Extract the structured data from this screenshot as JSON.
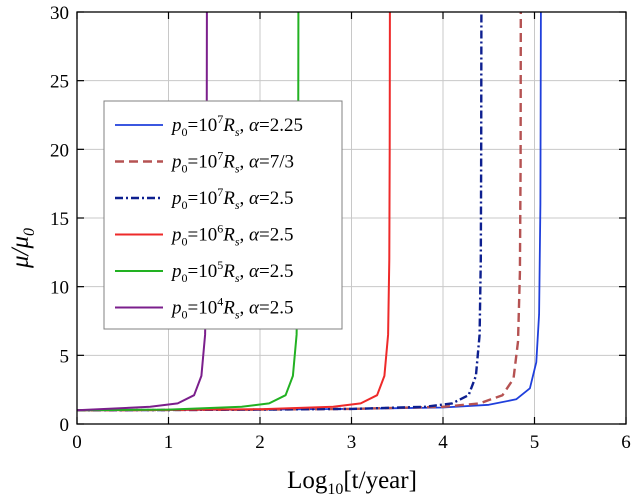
{
  "chart_data": {
    "type": "line",
    "xlabel_main": "Log",
    "xlabel_sub": "10",
    "xlabel_tail": "[t/year]",
    "ylabel_mu": "μ/μ",
    "ylabel_sub": "0",
    "xlim": [
      0,
      6
    ],
    "ylim": [
      0,
      30
    ],
    "xticks": [
      "0",
      "1",
      "2",
      "3",
      "4",
      "5",
      "6"
    ],
    "yticks": [
      "0",
      "5",
      "10",
      "15",
      "20",
      "25",
      "30"
    ],
    "grid": true,
    "legend_position": "center-left",
    "series": [
      {
        "legend": {
          "p": "p",
          "sub0": "0",
          "eq": "=10",
          "exp": "7",
          "R": "R",
          "subs": "s",
          "comma": ", ",
          "alpha": "α",
          "val": "=2.25"
        },
        "color": "#1f3fdc",
        "dash": "solid",
        "width": 1.8,
        "asymptote": 5.07,
        "x": [
          0,
          1,
          2,
          3,
          4,
          4.5,
          4.8,
          4.95,
          5.02,
          5.05,
          5.065,
          5.07
        ],
        "y": [
          1.0,
          1.02,
          1.05,
          1.1,
          1.2,
          1.4,
          1.8,
          2.6,
          4.5,
          8,
          16,
          30
        ]
      },
      {
        "legend": {
          "p": "p",
          "sub0": "0",
          "eq": "=10",
          "exp": "7",
          "R": "R",
          "subs": "s",
          "comma": ", ",
          "alpha": "α",
          "val": "=7/3"
        },
        "color": "#b55252",
        "dash": "dashed",
        "width": 2.4,
        "asymptote": 4.85,
        "x": [
          0,
          1,
          2,
          3,
          4,
          4.4,
          4.65,
          4.77,
          4.82,
          4.84,
          4.848,
          4.85
        ],
        "y": [
          1.0,
          1.02,
          1.05,
          1.1,
          1.25,
          1.5,
          2.1,
          3.3,
          6,
          11,
          19,
          30
        ]
      },
      {
        "legend": {
          "p": "p",
          "sub0": "0",
          "eq": "=10",
          "exp": "7",
          "R": "R",
          "subs": "s",
          "comma": ", ",
          "alpha": "α",
          "val": "=2.5"
        },
        "color": "#0d1f8f",
        "dash": "dashdot",
        "width": 2.4,
        "asymptote": 4.42,
        "x": [
          0,
          1,
          2,
          3,
          3.8,
          4.1,
          4.28,
          4.36,
          4.4,
          4.413,
          4.418,
          4.42
        ],
        "y": [
          1.0,
          1.02,
          1.05,
          1.1,
          1.25,
          1.5,
          2.1,
          3.5,
          6.5,
          12,
          20,
          30
        ]
      },
      {
        "legend": {
          "p": "p",
          "sub0": "0",
          "eq": "=10",
          "exp": "6",
          "R": "R",
          "subs": "s",
          "comma": ", ",
          "alpha": "α",
          "val": "=2.5"
        },
        "color": "#ee2a2a",
        "dash": "solid",
        "width": 2.0,
        "asymptote": 3.42,
        "x": [
          0,
          1,
          2,
          2.8,
          3.1,
          3.28,
          3.36,
          3.4,
          3.413,
          3.418,
          3.42
        ],
        "y": [
          1.0,
          1.03,
          1.08,
          1.25,
          1.5,
          2.1,
          3.5,
          6.5,
          12,
          20,
          30
        ]
      },
      {
        "legend": {
          "p": "p",
          "sub0": "0",
          "eq": "=10",
          "exp": "5",
          "R": "R",
          "subs": "s",
          "comma": ", ",
          "alpha": "α",
          "val": "=2.5"
        },
        "color": "#22b122",
        "dash": "solid",
        "width": 2.0,
        "asymptote": 2.42,
        "x": [
          0,
          1,
          1.8,
          2.1,
          2.28,
          2.36,
          2.4,
          2.413,
          2.418,
          2.42
        ],
        "y": [
          1.0,
          1.05,
          1.25,
          1.5,
          2.1,
          3.5,
          6.5,
          12,
          20,
          30
        ]
      },
      {
        "legend": {
          "p": "p",
          "sub0": "0",
          "eq": "=10",
          "exp": "4",
          "R": "R",
          "subs": "s",
          "comma": ", ",
          "alpha": "α",
          "val": "=2.5"
        },
        "color": "#7b1f8c",
        "dash": "solid",
        "width": 2.0,
        "asymptote": 1.42,
        "x": [
          0,
          0.8,
          1.1,
          1.28,
          1.36,
          1.4,
          1.413,
          1.418,
          1.42
        ],
        "y": [
          1.0,
          1.25,
          1.5,
          2.1,
          3.5,
          6.5,
          12,
          20,
          30
        ]
      }
    ]
  }
}
